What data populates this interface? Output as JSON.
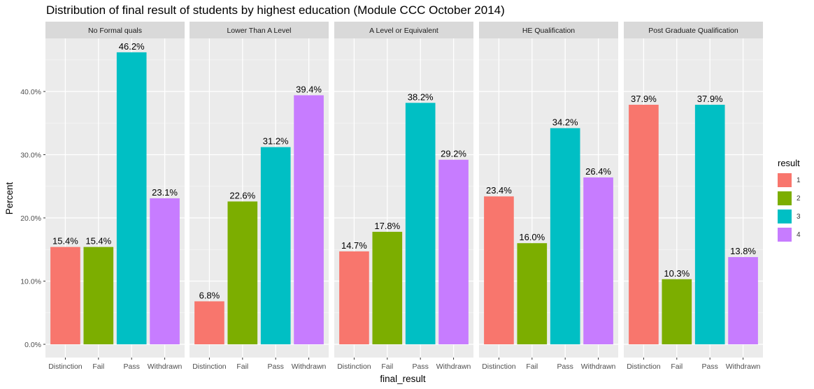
{
  "chart_data": {
    "type": "bar",
    "title": "Distribution of final result of students by highest education (Module CCC October 2014)",
    "xlabel": "final_result",
    "ylabel": "Percent",
    "ylim": [
      0,
      50
    ],
    "yticks": [
      0,
      10,
      20,
      30,
      40
    ],
    "ytick_labels": [
      "0.0%",
      "10.0%",
      "20.0%",
      "30.0%",
      "40.0%"
    ],
    "categories": [
      "Distinction",
      "Fail",
      "Pass",
      "Withdrawn"
    ],
    "category_colors": [
      "#F8766D",
      "#7CAE00",
      "#00BFC4",
      "#C77CFF"
    ],
    "facets": [
      {
        "name": "No Formal quals",
        "values": [
          15.4,
          15.4,
          46.2,
          23.1
        ],
        "labels": [
          "15.4%",
          "15.4%",
          "46.2%",
          "23.1%"
        ]
      },
      {
        "name": "Lower Than A Level",
        "values": [
          6.8,
          22.6,
          31.2,
          39.4
        ],
        "labels": [
          "6.8%",
          "22.6%",
          "31.2%",
          "39.4%"
        ]
      },
      {
        "name": "A Level or Equivalent",
        "values": [
          14.7,
          17.8,
          38.2,
          29.2
        ],
        "labels": [
          "14.7%",
          "17.8%",
          "38.2%",
          "29.2%"
        ]
      },
      {
        "name": "HE Qualification",
        "values": [
          23.4,
          16.0,
          34.2,
          26.4
        ],
        "labels": [
          "23.4%",
          "16.0%",
          "34.2%",
          "26.4%"
        ]
      },
      {
        "name": "Post Graduate Qualification",
        "values": [
          37.9,
          10.3,
          37.9,
          13.8
        ],
        "labels": [
          "37.9%",
          "10.3%",
          "37.9%",
          "13.8%"
        ]
      }
    ],
    "legend": {
      "title": "result",
      "position": "right",
      "items": [
        {
          "label": "1",
          "color": "#F8766D"
        },
        {
          "label": "2",
          "color": "#7CAE00"
        },
        {
          "label": "3",
          "color": "#00BFC4"
        },
        {
          "label": "4",
          "color": "#C77CFF"
        }
      ]
    },
    "grid": true
  }
}
